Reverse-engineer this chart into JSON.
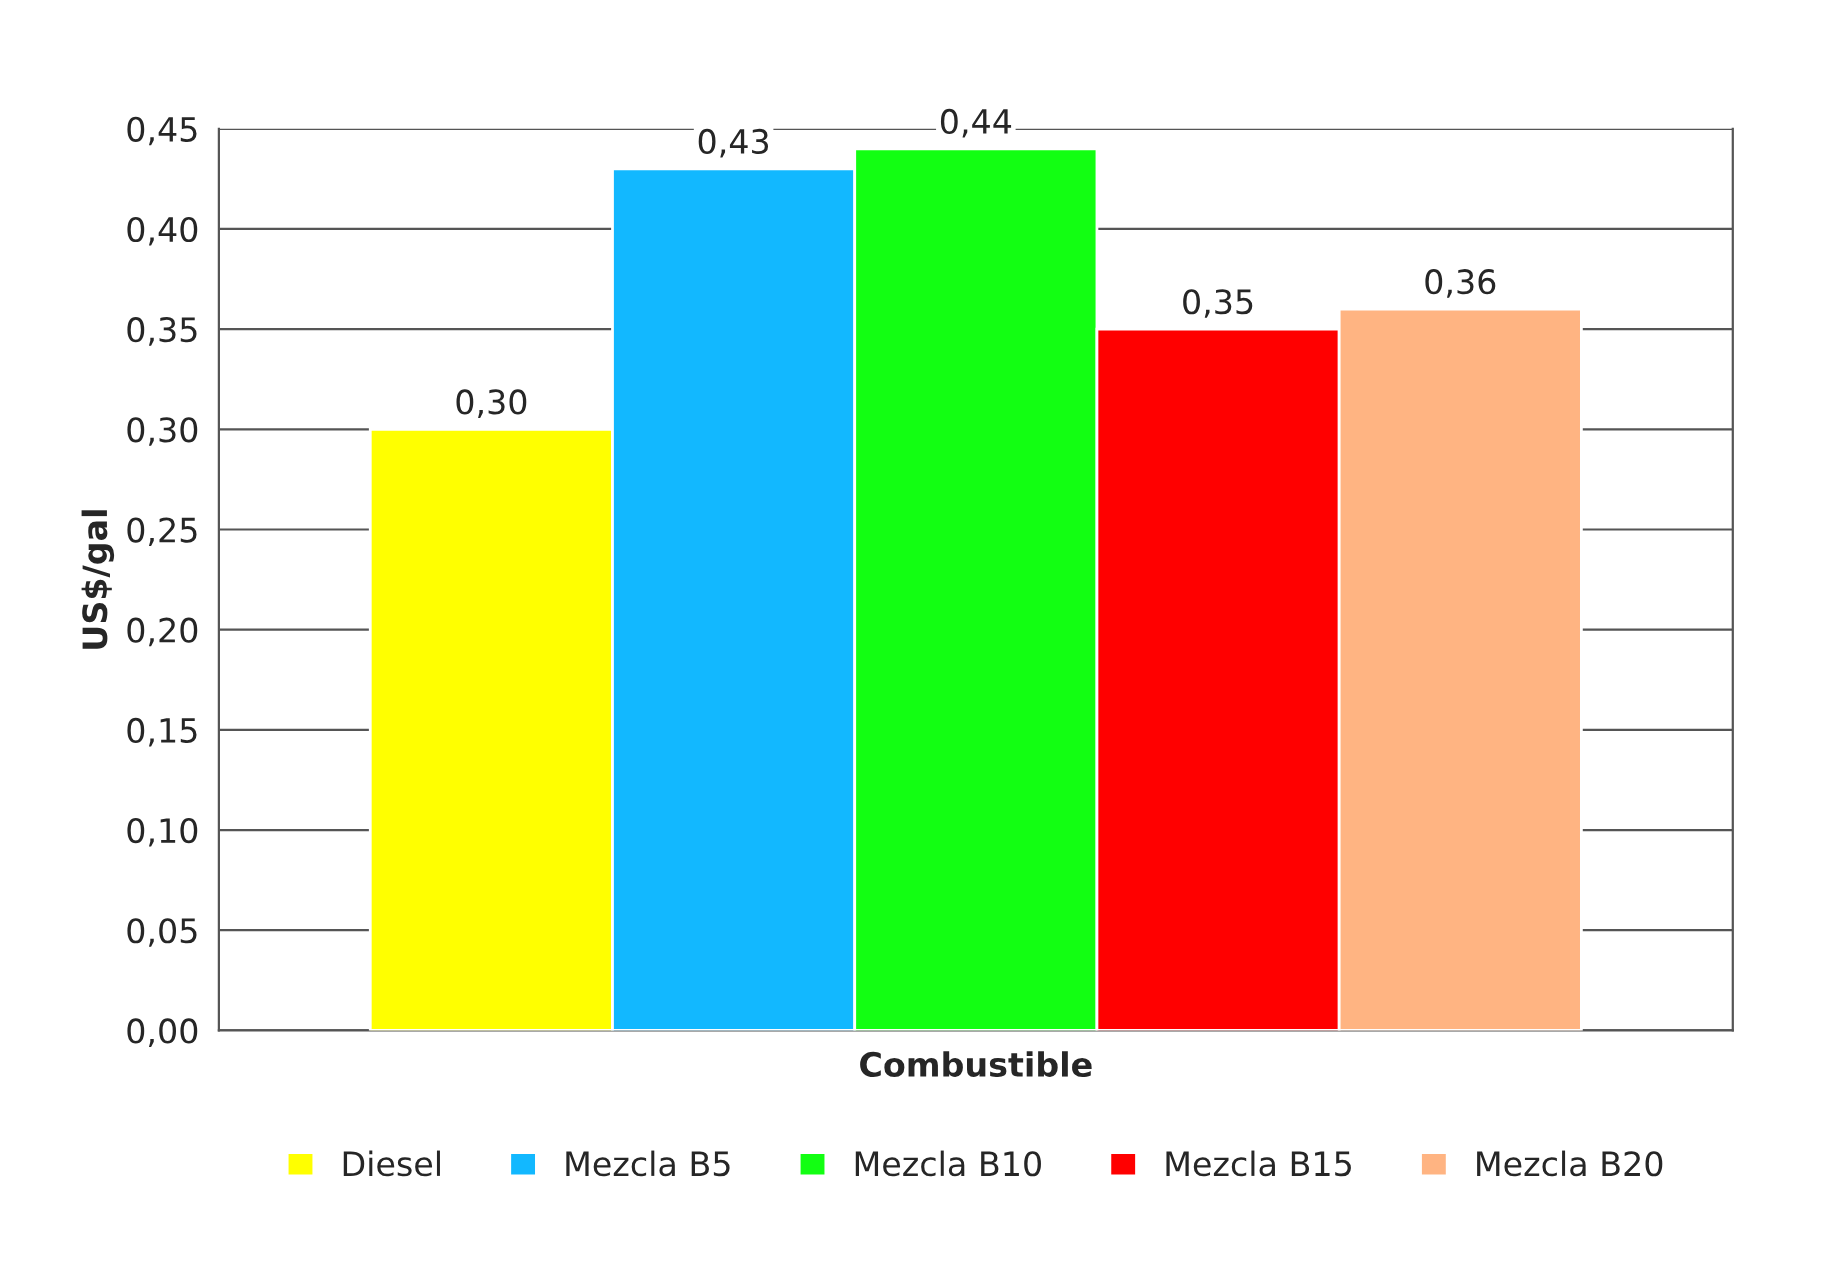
{
  "chart_data": {
    "type": "bar",
    "xlabel": "Combustible",
    "ylabel": "US$/gal",
    "categories": [
      null
    ],
    "series": [
      {
        "name": "Diesel",
        "color": "#ffff00",
        "values": [
          0.3
        ],
        "value_labels": [
          "0,30"
        ]
      },
      {
        "name": "Mezcla B5",
        "color": "#12b8ff",
        "values": [
          0.43
        ],
        "value_labels": [
          "0,43"
        ]
      },
      {
        "name": "Mezcla B10",
        "color": "#12ff12",
        "values": [
          0.44
        ],
        "value_labels": [
          "0,44"
        ]
      },
      {
        "name": "Mezcla B15",
        "color": "#ff0000",
        "values": [
          0.35
        ],
        "value_labels": [
          "0,35"
        ]
      },
      {
        "name": "Mezcla B20",
        "color": "#ffb482",
        "values": [
          0.36
        ],
        "value_labels": [
          "0,36"
        ]
      }
    ],
    "ylim": [
      0,
      0.45
    ],
    "yticks": [
      {
        "value": 0,
        "label": "0,00"
      },
      {
        "value": 0.05,
        "label": "0,05"
      },
      {
        "value": 0.1,
        "label": "0,10"
      },
      {
        "value": 0.15,
        "label": "0,15"
      },
      {
        "value": 0.2,
        "label": "0,20"
      },
      {
        "value": 0.25,
        "label": "0,25"
      },
      {
        "value": 0.3,
        "label": "0,30"
      },
      {
        "value": 0.35,
        "label": "0,35"
      },
      {
        "value": 0.4,
        "label": "0,40"
      },
      {
        "value": 0.45,
        "label": "0,45"
      }
    ],
    "grid": "y",
    "legend": "bottom"
  }
}
